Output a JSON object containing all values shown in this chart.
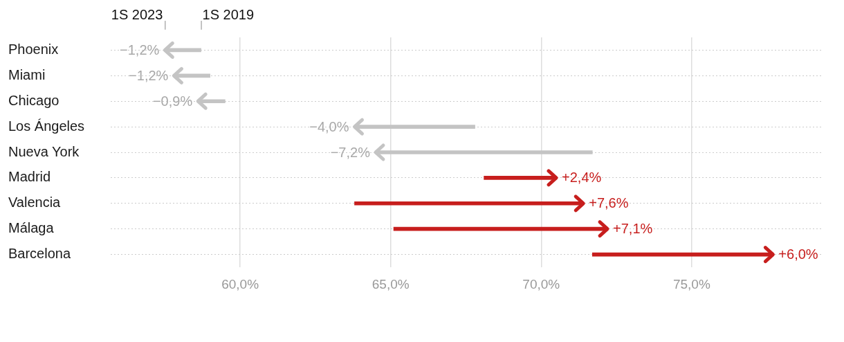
{
  "chart_data": {
    "type": "bar",
    "orientation": "horizontal",
    "categories": [
      "Phoenix",
      "Miami",
      "Chicago",
      "Los Ángeles",
      "Nueva York",
      "Madrid",
      "Valencia",
      "Málaga",
      "Barcelona"
    ],
    "base": [
      58.7,
      59.0,
      59.5,
      67.8,
      71.7,
      68.1,
      63.8,
      65.1,
      71.7
    ],
    "values": [
      -1.2,
      -1.2,
      -0.9,
      -4.0,
      -7.2,
      2.4,
      7.6,
      7.1,
      6.0
    ],
    "value_labels": [
      "−1,2%",
      "−1,2%",
      "−0,9%",
      "−4,0%",
      "−7,2%",
      "+2,4%",
      "+7,6%",
      "+7,1%",
      "+6,0%"
    ],
    "colors": [
      "#c4c4c4",
      "#c4c4c4",
      "#c4c4c4",
      "#c4c4c4",
      "#c4c4c4",
      "#c71e1d",
      "#c71e1d",
      "#c71e1d",
      "#c71e1d"
    ],
    "xlim": [
      55.7,
      79.3
    ],
    "xticks": [
      {
        "value": 60,
        "label": "60,0%"
      },
      {
        "value": 65,
        "label": "65,0%"
      },
      {
        "value": 70,
        "label": "70,0%"
      },
      {
        "value": 75,
        "label": "75,0%"
      }
    ],
    "grid": true,
    "legend": false,
    "annotations": [
      {
        "text": "1S 2023",
        "x": 57.5,
        "y": "Phoenix"
      },
      {
        "text": "1S 2019",
        "x": 58.7,
        "y": "Phoenix"
      }
    ]
  }
}
